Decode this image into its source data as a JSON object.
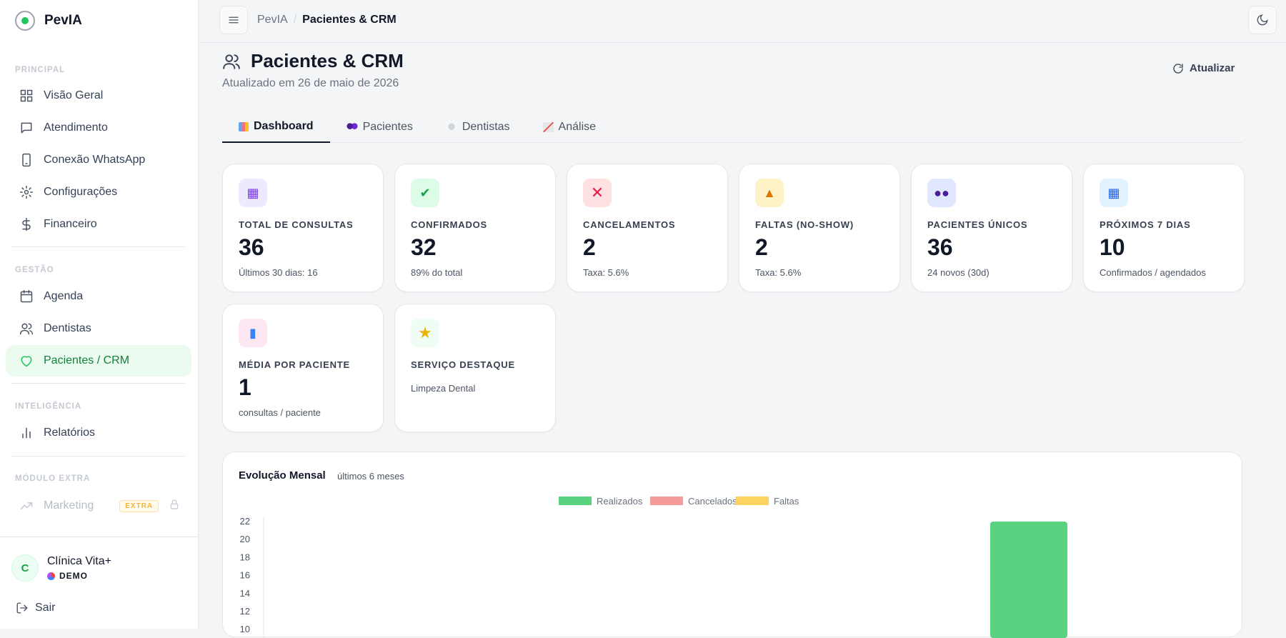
{
  "brand": {
    "name": "PevIA"
  },
  "sidebar": {
    "sections": [
      {
        "title": "PRINCIPAL",
        "items": [
          {
            "label": "Visão Geral",
            "icon": "grid-icon"
          },
          {
            "label": "Atendimento",
            "icon": "chat-icon"
          },
          {
            "label": "Conexão WhatsApp",
            "icon": "phone-icon"
          },
          {
            "label": "Configurações",
            "icon": "gear-icon"
          },
          {
            "label": "Financeiro",
            "icon": "dollar-icon"
          }
        ]
      },
      {
        "title": "GESTÃO",
        "items": [
          {
            "label": "Agenda",
            "icon": "calendar-icon"
          },
          {
            "label": "Dentistas",
            "icon": "users-icon"
          },
          {
            "label": "Pacientes / CRM",
            "icon": "heart-icon",
            "active": true
          }
        ]
      },
      {
        "title": "INTELIGÊNCIA",
        "items": [
          {
            "label": "Relatórios",
            "icon": "bar-chart-icon"
          }
        ]
      },
      {
        "title": "MÓDULO EXTRA",
        "items": [
          {
            "label": "Marketing",
            "icon": "trend-icon",
            "badge": "EXTRA",
            "locked": true
          }
        ]
      }
    ],
    "user": {
      "initial": "C",
      "name": "Clínica Vita+",
      "plan": "DEMO"
    },
    "logout_label": "Sair"
  },
  "topbar": {
    "breadcrumb_root": "PevIA",
    "breadcrumb_sep": "/",
    "breadcrumb_current": "Pacientes & CRM"
  },
  "page": {
    "title": "Pacientes & CRM",
    "subtitle": "Atualizado em 26 de maio de 2026",
    "refresh_label": "Atualizar"
  },
  "tabs": [
    {
      "label": "Dashboard",
      "icon": "bar-chart-emoji-icon",
      "active": true
    },
    {
      "label": "Pacientes",
      "icon": "people-emoji-icon"
    },
    {
      "label": "Dentistas",
      "icon": "tooth-emoji-icon"
    },
    {
      "label": "Análise",
      "icon": "trend-emoji-icon"
    }
  ],
  "stats": [
    {
      "label": "TOTAL DE CONSULTAS",
      "value": "36",
      "sub": "Últimos 30 dias: 16",
      "icon": "calendar-icon",
      "color": "#ede9fe"
    },
    {
      "label": "CONFIRMADOS",
      "value": "32",
      "sub": "89% do total",
      "icon": "check-icon",
      "color": "#dcfce7"
    },
    {
      "label": "CANCELAMENTOS",
      "value": "2",
      "sub": "Taxa: 5.6%",
      "icon": "x-icon",
      "color": "#fee2e2"
    },
    {
      "label": "FALTAS (NO-SHOW)",
      "value": "2",
      "sub": "Taxa: 5.6%",
      "icon": "warning-icon",
      "color": "#fef3c7"
    },
    {
      "label": "PACIENTES ÚNICOS",
      "value": "36",
      "sub": "24 novos (30d)",
      "icon": "people-icon",
      "color": "#e0e7ff"
    },
    {
      "label": "PRÓXIMOS 7 DIAS",
      "value": "10",
      "sub": "Confirmados / agendados",
      "icon": "calendar-icon",
      "color": "#e0f2fe"
    },
    {
      "label": "MÉDIA POR PACIENTE",
      "value": "1",
      "sub": "consultas / paciente",
      "icon": "chart-icon",
      "color": "#fce7f3"
    },
    {
      "label": "SERVIÇO DESTAQUE",
      "value": "",
      "sub": "Limpeza Dental",
      "icon": "star-icon",
      "color": "#f0fdf4"
    }
  ],
  "chart": {
    "title": "Evolução Mensal",
    "subtitle": "últimos 6 meses"
  },
  "chart_data": {
    "type": "bar",
    "title": "Evolução Mensal",
    "subtitle": "últimos 6 meses",
    "categories": [
      "",
      "",
      "",
      "",
      "",
      ""
    ],
    "series": [
      {
        "name": "Realizados",
        "color": "#5ad27f",
        "values": [
          0,
          0,
          0,
          0,
          22,
          0
        ]
      },
      {
        "name": "Cancelados",
        "color": "#f59b9b",
        "values": [
          0,
          0,
          0,
          0,
          0,
          0
        ]
      },
      {
        "name": "Faltas",
        "color": "#fcd361",
        "values": [
          0,
          0,
          0,
          0,
          0,
          0
        ]
      }
    ],
    "yticks": [
      10,
      12,
      14,
      16,
      18,
      20,
      22
    ],
    "ylim": [
      0,
      22
    ],
    "legend": "top-center"
  }
}
